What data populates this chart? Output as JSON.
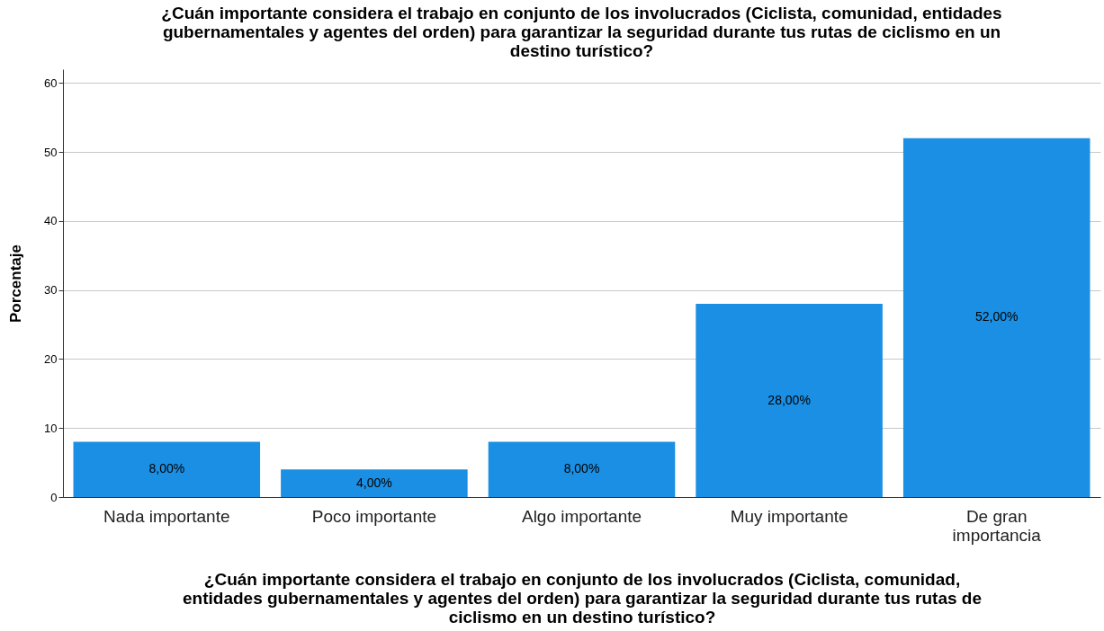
{
  "chart_data": {
    "type": "bar",
    "title": "¿Cuán importante considera el trabajo en conjunto de los involucrados (Ciclista, comunidad, entidades gubernamentales y agentes del orden) para garantizar la seguridad durante tus rutas de ciclismo en un destino turístico?",
    "xlabel": "¿Cuán importante considera el trabajo en conjunto de los involucrados (Ciclista, comunidad, entidades gubernamentales y agentes del orden) para garantizar la seguridad durante tus rutas de ciclismo en un destino turístico?",
    "ylabel": "Porcentaje",
    "categories": [
      "Nada importante",
      "Poco importante",
      "Algo importante",
      "Muy importante",
      "De gran importancia"
    ],
    "values": [
      8,
      4,
      8,
      28,
      52
    ],
    "value_labels": [
      "8,00%",
      "4,00%",
      "8,00%",
      "28,00%",
      "52,00%"
    ],
    "color": "#1a8fe3",
    "ylim": [
      0,
      62
    ],
    "yticks": [
      0,
      10,
      20,
      30,
      40,
      50,
      60
    ],
    "grid": "y"
  }
}
